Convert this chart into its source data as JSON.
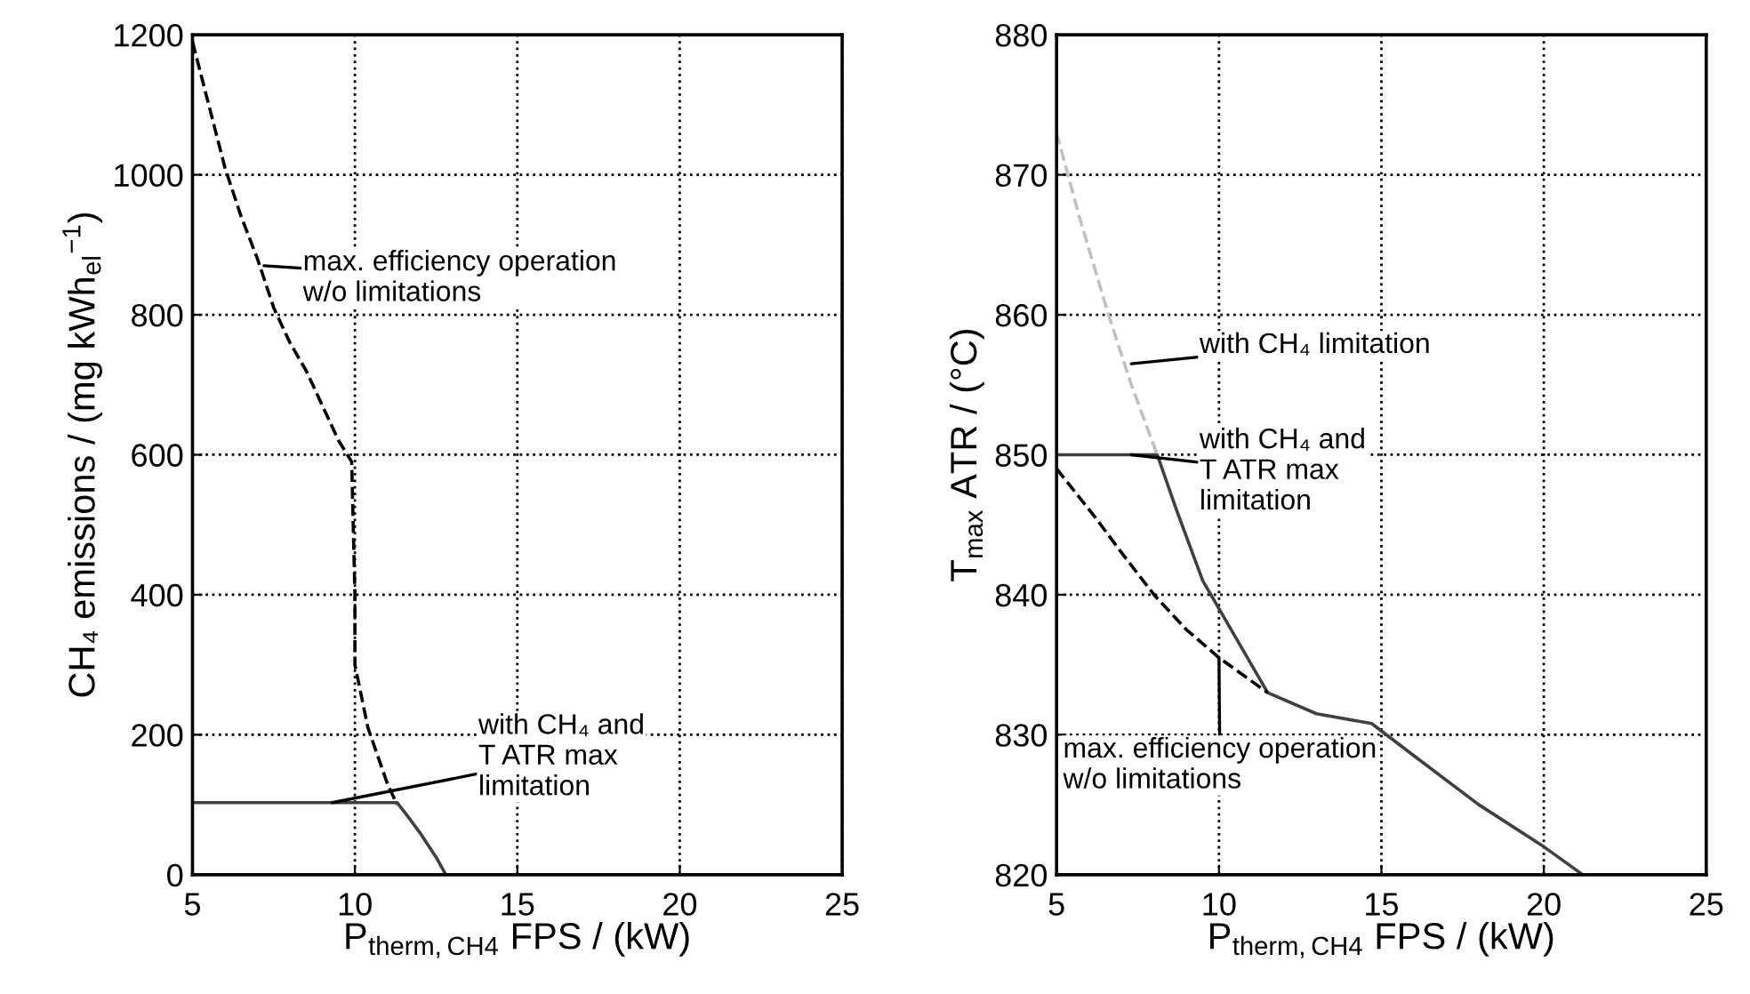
{
  "chart_data": [
    {
      "type": "line",
      "xlabel": "P$_{therm,CH4}$ FPS / (kW)",
      "ylabel": "CH₄ emissions / (mg kWh$_{el}$$^{−1}$)",
      "xlim": [
        5,
        25
      ],
      "ylim": [
        0,
        1200
      ],
      "xticks": [
        5,
        10,
        15,
        20,
        25
      ],
      "yticks": [
        0,
        200,
        400,
        600,
        800,
        1000,
        1200
      ],
      "grid": true,
      "series": [
        {
          "color": "#000000",
          "line_style": "dashed",
          "x": [
            5,
            5.5,
            6,
            6.5,
            7,
            7.5,
            8,
            8.5,
            9,
            9.5,
            9.9,
            10,
            10,
            10.4,
            11,
            11.3
          ],
          "values": [
            1190,
            1100,
            1010,
            940,
            880,
            810,
            760,
            720,
            670,
            620,
            590,
            400,
            300,
            210,
            130,
            100
          ]
        },
        {
          "color": "#404040",
          "line_style": "solid",
          "x": [
            5,
            11.3,
            11.6,
            12,
            12.5,
            12.8
          ],
          "values": [
            103,
            103,
            85,
            60,
            25,
            0
          ]
        }
      ],
      "annotations": [
        {
          "text": "max. efficiency operation\nw/o limitations",
          "x": 7.2,
          "y": 870
        },
        {
          "text": "with CH₄ and\nT ATR max\nlimitation",
          "x": 9.3,
          "y": 103
        }
      ]
    },
    {
      "type": "line",
      "xlabel": "P$_{therm,CH4}$ FPS / (kW)",
      "ylabel": "T$_{max}$ ATR / (°C)",
      "xlim": [
        5,
        25
      ],
      "ylim": [
        820,
        880
      ],
      "xticks": [
        5,
        10,
        15,
        20,
        25
      ],
      "yticks": [
        820,
        830,
        840,
        850,
        860,
        870,
        880
      ],
      "grid": true,
      "series": [
        {
          "color": "#c0c0c0",
          "line_style": "dashed",
          "x": [
            5,
            5.7,
            6.6,
            7.3,
            8.1
          ],
          "values": [
            873,
            867,
            860,
            855,
            850
          ]
        },
        {
          "color": "#404040",
          "line_style": "solid",
          "x": [
            5,
            8.1,
            8.7,
            9.5,
            10.5,
            11.5,
            13,
            14.7,
            16,
            18,
            20,
            21.2
          ],
          "values": [
            850,
            850,
            846,
            841,
            837,
            833,
            831.5,
            830.8,
            828.5,
            825,
            822,
            820
          ]
        },
        {
          "color": "#000000",
          "line_style": "dashed",
          "x": [
            5,
            6.2,
            7,
            8,
            9,
            10,
            11.5
          ],
          "values": [
            849,
            845.5,
            843,
            840,
            837.5,
            835.5,
            833
          ]
        }
      ],
      "annotations": [
        {
          "text": "with CH₄ limitation",
          "x": 7.3,
          "y": 856.5
        },
        {
          "text": "with CH₄ and\nT ATR max\nlimitation",
          "x": 7.3,
          "y": 850
        },
        {
          "text": "max. efficiency operation\nw/o limitations",
          "x": 10,
          "y": 835.5
        }
      ]
    }
  ]
}
